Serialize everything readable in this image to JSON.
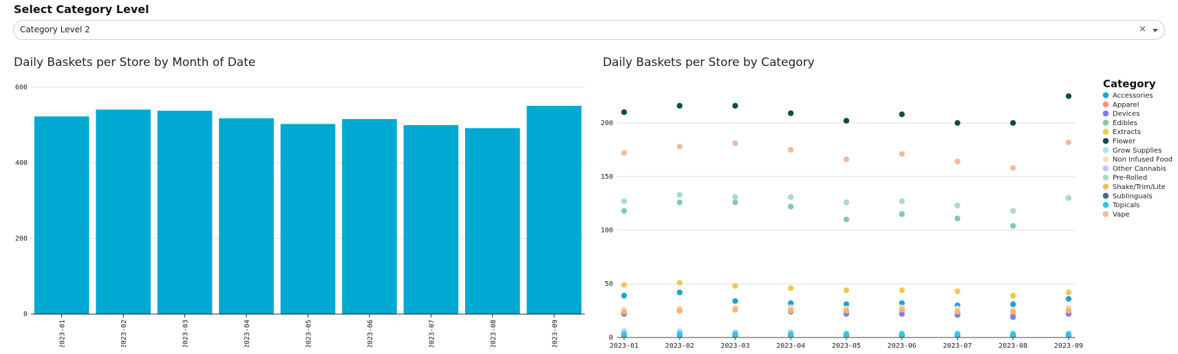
{
  "selector": {
    "title": "Select Category Level",
    "value": "Category Level 2",
    "clear_glyph": "×"
  },
  "colors": {
    "bar": "#00A9D1",
    "grid": "#dddddd",
    "axis": "#222222"
  },
  "chart_data": [
    {
      "type": "bar",
      "title": "Daily Baskets per Store by Month of Date",
      "categories": [
        "2023-01",
        "2023-02",
        "2023-03",
        "2023-04",
        "2023-05",
        "2023-06",
        "2023-07",
        "2023-08",
        "2023-09"
      ],
      "values": [
        523,
        541,
        538,
        518,
        503,
        516,
        500,
        492,
        551
      ],
      "ylim": [
        0,
        600
      ],
      "yticks": [
        0,
        200,
        400,
        600
      ],
      "grid": true
    },
    {
      "type": "scatter",
      "title": "Daily Baskets per Store by Category",
      "legend_title": "Category",
      "legend_position": "right",
      "x": [
        "2023-01",
        "2023-02",
        "2023-03",
        "2023-04",
        "2023-05",
        "2023-06",
        "2023-07",
        "2023-08",
        "2023-09"
      ],
      "ylim": [
        0,
        230
      ],
      "yticks": [
        0,
        50,
        100,
        150,
        200
      ],
      "grid": true,
      "series": [
        {
          "name": "Accessories",
          "color": "#19A7CE",
          "values": [
            39,
            42,
            34,
            32,
            31,
            32,
            30,
            31,
            36
          ]
        },
        {
          "name": "Apparel",
          "color": "#F4956A",
          "values": [
            23,
            25,
            26,
            27,
            24,
            25,
            22,
            21,
            23
          ]
        },
        {
          "name": "Devices",
          "color": "#7B7EF0",
          "values": [
            22,
            25,
            27,
            24,
            22,
            22,
            21,
            19,
            22
          ]
        },
        {
          "name": "Edibles",
          "color": "#7FCDA6",
          "values": [
            118,
            126,
            126,
            122,
            110,
            115,
            111,
            104,
            130
          ]
        },
        {
          "name": "Extracts",
          "color": "#F2C94C",
          "values": [
            49,
            51,
            48,
            46,
            44,
            44,
            43,
            39,
            42
          ]
        },
        {
          "name": "Flower",
          "color": "#0B4F4C",
          "values": [
            210,
            216,
            216,
            209,
            202,
            208,
            200,
            200,
            225
          ]
        },
        {
          "name": "Grow Supplies",
          "color": "#A3E4F4",
          "values": [
            6,
            6,
            5,
            5,
            4,
            4,
            4,
            4,
            4
          ]
        },
        {
          "name": "Non Infused Food",
          "color": "#FFD8C6",
          "values": [
            26,
            27,
            28,
            28,
            27,
            28,
            27,
            26,
            28
          ]
        },
        {
          "name": "Other Cannabis",
          "color": "#C9C2F2",
          "values": [
            4,
            4,
            4,
            4,
            3,
            3,
            3,
            3,
            3
          ]
        },
        {
          "name": "Pre-Rolled",
          "color": "#A8DCC3",
          "values": [
            127,
            133,
            131,
            131,
            126,
            127,
            123,
            118,
            130
          ]
        },
        {
          "name": "Shake/Trim/Lite",
          "color": "#F9B46B",
          "values": [
            24,
            25,
            26,
            25,
            25,
            26,
            24,
            24,
            25
          ]
        },
        {
          "name": "Sublinguals",
          "color": "#3C6E8F",
          "values": [
            2,
            2,
            2,
            2,
            2,
            2,
            2,
            2,
            2
          ]
        },
        {
          "name": "Topicals",
          "color": "#2EC7E6",
          "values": [
            3,
            3,
            3,
            3,
            3,
            3,
            3,
            3,
            3
          ]
        },
        {
          "name": "Vape",
          "color": "#F6B99C",
          "values": [
            172,
            178,
            181,
            175,
            166,
            171,
            164,
            158,
            182
          ]
        }
      ]
    }
  ]
}
